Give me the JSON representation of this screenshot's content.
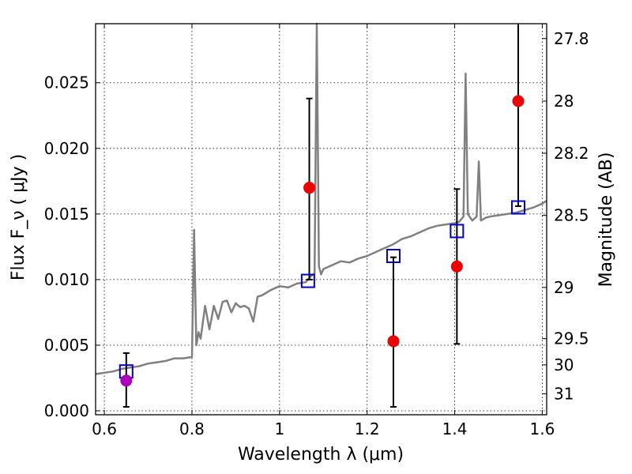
{
  "chart_data": {
    "type": "line",
    "xlabel": "Wavelength λ (μm)",
    "ylabel": "Flux F_ν ( μJy )",
    "y2label": "Magnitude (AB)",
    "xlim": [
      0.58,
      1.61
    ],
    "ylim": [
      -0.0003,
      0.0295
    ],
    "grid": true,
    "grid_style": "dotted",
    "x_ticks": [
      0.6,
      0.8,
      1.0,
      1.2,
      1.4,
      1.6
    ],
    "x_tick_labels": [
      "0.6",
      "0.8",
      "1",
      "1.2",
      "1.4",
      "1.6"
    ],
    "y_ticks": [
      0.0,
      0.005,
      0.01,
      0.015,
      0.02,
      0.025
    ],
    "y_tick_labels": [
      "0.000",
      "0.005",
      "0.010",
      "0.015",
      "0.020",
      "0.025"
    ],
    "y2_ticks": [
      {
        "label": "27.8",
        "flux": 0.02837
      },
      {
        "label": "28",
        "flux": 0.0236
      },
      {
        "label": "28.2",
        "flux": 0.01963
      },
      {
        "label": "28.5",
        "flux": 0.01489
      },
      {
        "label": "29",
        "flux": 0.0094
      },
      {
        "label": "29.5",
        "flux": 0.0055
      },
      {
        "label": "30",
        "flux": 0.0035
      },
      {
        "label": "31",
        "flux": 0.0013
      }
    ],
    "colors": {
      "model": "#808080",
      "model_points": "#0000cc",
      "observed": "#ee0000",
      "observed_first": "#aa00bb",
      "errorbar": "#000000"
    },
    "model_spectrum": {
      "x": [
        0.58,
        0.6,
        0.62,
        0.64,
        0.66,
        0.68,
        0.7,
        0.72,
        0.74,
        0.76,
        0.78,
        0.8,
        0.805,
        0.81,
        0.815,
        0.82,
        0.83,
        0.84,
        0.85,
        0.86,
        0.87,
        0.88,
        0.89,
        0.9,
        0.91,
        0.92,
        0.93,
        0.94,
        0.95,
        0.96,
        0.98,
        1.0,
        1.02,
        1.04,
        1.06,
        1.07,
        1.08,
        1.085,
        1.09,
        1.095,
        1.1,
        1.12,
        1.14,
        1.16,
        1.18,
        1.2,
        1.22,
        1.24,
        1.26,
        1.28,
        1.3,
        1.32,
        1.34,
        1.36,
        1.38,
        1.4,
        1.41,
        1.42,
        1.425,
        1.43,
        1.44,
        1.45,
        1.455,
        1.46,
        1.47,
        1.48,
        1.5,
        1.52,
        1.54,
        1.55,
        1.56,
        1.58,
        1.6,
        1.61
      ],
      "y": [
        0.0028,
        0.0029,
        0.003,
        0.0032,
        0.0033,
        0.0034,
        0.0036,
        0.0037,
        0.0038,
        0.004,
        0.004,
        0.0041,
        0.0138,
        0.005,
        0.006,
        0.0055,
        0.008,
        0.0062,
        0.008,
        0.007,
        0.0083,
        0.0084,
        0.0075,
        0.0082,
        0.0079,
        0.008,
        0.0078,
        0.0068,
        0.0087,
        0.0088,
        0.0092,
        0.0095,
        0.0094,
        0.0097,
        0.0098,
        0.0102,
        0.0105,
        0.03,
        0.011,
        0.0104,
        0.0108,
        0.0111,
        0.0114,
        0.0113,
        0.0116,
        0.0118,
        0.0121,
        0.0124,
        0.0127,
        0.0131,
        0.0133,
        0.0136,
        0.0139,
        0.0141,
        0.0142,
        0.0143,
        0.0144,
        0.0148,
        0.0257,
        0.015,
        0.0145,
        0.0148,
        0.019,
        0.0145,
        0.0147,
        0.0148,
        0.0149,
        0.015,
        0.0151,
        0.0152,
        0.0153,
        0.0155,
        0.0158,
        0.016
      ]
    },
    "model_points": {
      "x": [
        0.65,
        1.065,
        1.26,
        1.405,
        1.545
      ],
      "y": [
        0.003,
        0.0099,
        0.0118,
        0.0137,
        0.0155
      ]
    },
    "observed": {
      "x": [
        0.65,
        1.068,
        1.26,
        1.405,
        1.545
      ],
      "y": [
        0.0023,
        0.017,
        0.0053,
        0.011,
        0.0236
      ],
      "err_low": [
        0.002,
        0.007,
        0.005,
        0.0059,
        0.008
      ],
      "err_high": [
        0.0021,
        0.0068,
        0.0064,
        0.0059,
        0.0065
      ]
    }
  }
}
